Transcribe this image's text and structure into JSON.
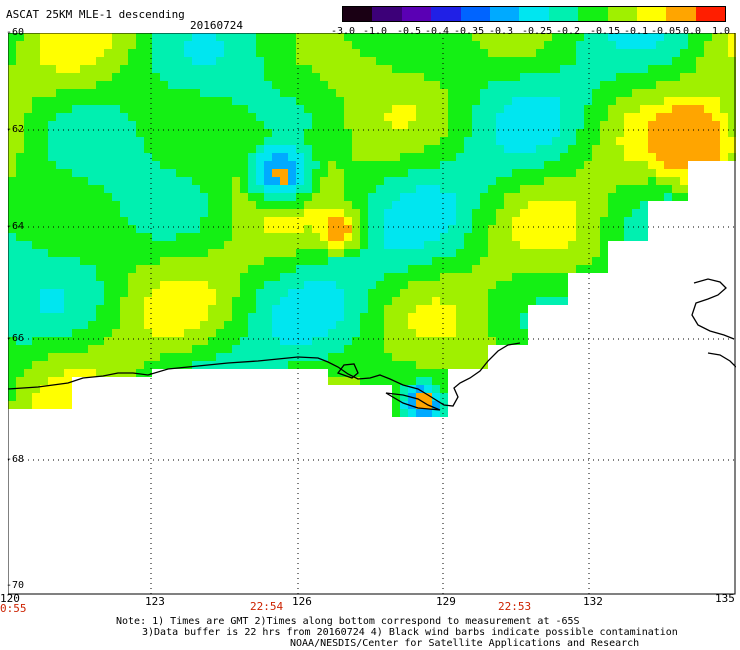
{
  "title": "ASCAT 25KM MLE-1 descending",
  "date": "20160724",
  "colorbar": {
    "labels": [
      "-3.0",
      "-1.0",
      "-0.5",
      "-0.4",
      "-0.35",
      "-0.3",
      "-0.25",
      "-0.2",
      "-0.15",
      "-0.1",
      "-0.05",
      "0.0",
      "1.0"
    ],
    "colors": [
      "#1a0014",
      "#3c0078",
      "#5a00b4",
      "#2020e6",
      "#0064ff",
      "#00aaff",
      "#00e6f0",
      "#00f0b0",
      "#14f014",
      "#a0f000",
      "#ffff00",
      "#ffa500",
      "#ff1e00"
    ]
  },
  "lat_ticks": [
    "-60",
    "-62",
    "-64",
    "-66",
    "-68",
    "-70"
  ],
  "lon_ticks": [
    "120",
    "123",
    "126",
    "129",
    "132",
    "135"
  ],
  "times": [
    "0:55",
    "22:54",
    "22:53"
  ],
  "notes": {
    "line1": "Note: 1) Times are GMT 2)Times along bottom correspond to measurement at -65S",
    "line2": "3)Data buffer is 22 hrs from 20160724 4) Black wind barbs indicate possible contamination",
    "line3": "NOAA/NESDIS/Center for Satellite Applications and Research"
  }
}
